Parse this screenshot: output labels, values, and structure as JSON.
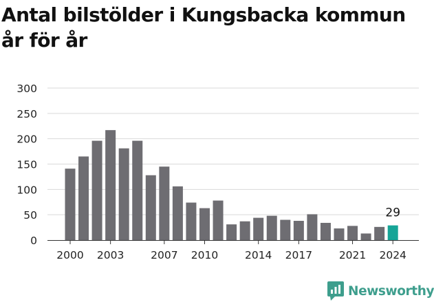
{
  "title": "Antal bilstölder i Kungsbacka kommun år för år",
  "brand": {
    "name": "Newsworthy",
    "color": "#3e9e8d"
  },
  "chart_data": {
    "type": "bar",
    "title": "Antal bilstölder i Kungsbacka kommun år för år",
    "xlabel": "",
    "ylabel": "",
    "x": [
      2000,
      2001,
      2002,
      2003,
      2004,
      2005,
      2006,
      2007,
      2008,
      2009,
      2010,
      2011,
      2012,
      2013,
      2014,
      2015,
      2016,
      2017,
      2018,
      2019,
      2020,
      2021,
      2022,
      2023,
      2024
    ],
    "values": [
      141,
      165,
      196,
      217,
      181,
      196,
      128,
      145,
      106,
      74,
      63,
      78,
      31,
      37,
      44,
      48,
      40,
      38,
      51,
      34,
      23,
      28,
      13,
      26,
      29
    ],
    "ylim": [
      0,
      300
    ],
    "yticks": [
      0,
      50,
      100,
      150,
      200,
      250,
      300
    ],
    "xticks": [
      2000,
      2003,
      2007,
      2010,
      2014,
      2017,
      2021,
      2024
    ],
    "annotations": [
      {
        "x": 2024,
        "text": "29"
      }
    ],
    "grid": true,
    "colors": {
      "bar": "#6e6d72",
      "highlight": "#16a597",
      "grid": "#d9d9d9"
    }
  }
}
